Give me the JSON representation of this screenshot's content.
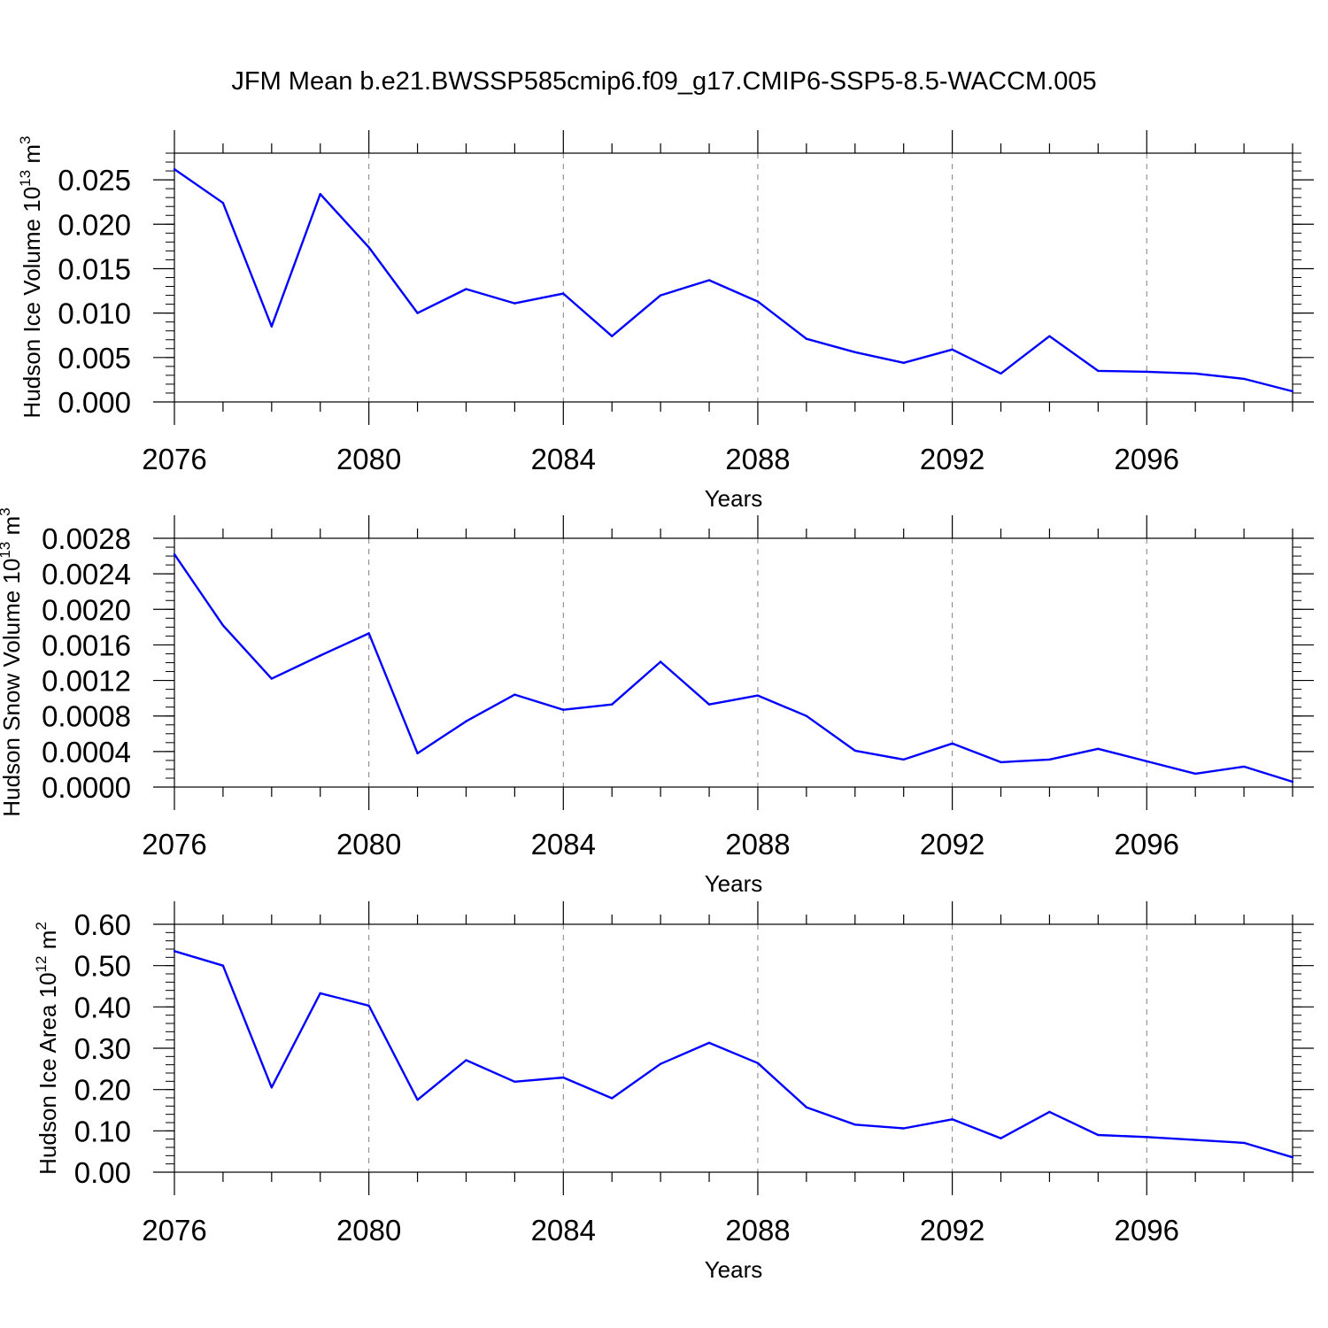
{
  "title": "JFM Mean b.e21.BWSSP585cmip6.f09_g17.CMIP6-SSP5-8.5-WACCM.005",
  "colors": {
    "line": "#0000ff",
    "axis": "#000000",
    "grid": "#808080",
    "background": "#ffffff"
  },
  "chart_data": [
    {
      "type": "line",
      "ylabel": {
        "text": "Hudson Ice Volume 10",
        "sup": "13",
        "unit": " m",
        "unit_sup": "3"
      },
      "xlabel": "Years",
      "xlim": [
        2076,
        2099
      ],
      "xticks": [
        2076,
        2080,
        2084,
        2088,
        2092,
        2096
      ],
      "xtick_labels": [
        "2076",
        "2080",
        "2084",
        "2088",
        "2092",
        "2096"
      ],
      "ylim": [
        0,
        0.028
      ],
      "yticks": [
        0,
        0.005,
        0.01,
        0.015,
        0.02,
        0.025
      ],
      "ytick_labels": [
        "0.000",
        "0.005",
        "0.010",
        "0.015",
        "0.020",
        "0.025"
      ],
      "ytick_minor_step": 0.001,
      "x": [
        2076,
        2077,
        2078,
        2079,
        2080,
        2081,
        2082,
        2083,
        2084,
        2085,
        2086,
        2087,
        2088,
        2089,
        2090,
        2091,
        2092,
        2093,
        2094,
        2095,
        2096,
        2097,
        2098,
        2099
      ],
      "values": [
        0.0262,
        0.0224,
        0.0085,
        0.0234,
        0.0174,
        0.01,
        0.0127,
        0.0111,
        0.0122,
        0.0074,
        0.012,
        0.0137,
        0.0113,
        0.0071,
        0.0056,
        0.0044,
        0.0059,
        0.0032,
        0.0074,
        0.0035,
        0.0034,
        0.0032,
        0.0026,
        0.0012
      ]
    },
    {
      "type": "line",
      "ylabel": {
        "text": "Hudson Snow Volume 10",
        "sup": "13",
        "unit": " m",
        "unit_sup": "3"
      },
      "xlabel": "Years",
      "xlim": [
        2076,
        2099
      ],
      "xticks": [
        2076,
        2080,
        2084,
        2088,
        2092,
        2096
      ],
      "xtick_labels": [
        "2076",
        "2080",
        "2084",
        "2088",
        "2092",
        "2096"
      ],
      "ylim": [
        0,
        0.0028
      ],
      "yticks": [
        0,
        0.0004,
        0.0008,
        0.0012,
        0.0016,
        0.002,
        0.0024,
        0.0028
      ],
      "ytick_labels": [
        "0.0000",
        "0.0004",
        "0.0008",
        "0.0012",
        "0.0016",
        "0.0020",
        "0.0024",
        "0.0028"
      ],
      "ytick_minor_step": 0.0001,
      "x": [
        2076,
        2077,
        2078,
        2079,
        2080,
        2081,
        2082,
        2083,
        2084,
        2085,
        2086,
        2087,
        2088,
        2089,
        2090,
        2091,
        2092,
        2093,
        2094,
        2095,
        2096,
        2097,
        2098,
        2099
      ],
      "values": [
        0.00262,
        0.00182,
        0.00122,
        0.00148,
        0.00173,
        0.00038,
        0.00074,
        0.00104,
        0.00087,
        0.00093,
        0.00141,
        0.00093,
        0.00103,
        0.0008,
        0.00041,
        0.00031,
        0.00049,
        0.00028,
        0.00031,
        0.00043,
        0.00029,
        0.00015,
        0.00023,
        6e-05
      ]
    },
    {
      "type": "line",
      "ylabel": {
        "text": "Hudson Ice Area 10",
        "sup": "12",
        "unit": " m",
        "unit_sup": "2"
      },
      "xlabel": "Years",
      "xlim": [
        2076,
        2099
      ],
      "xticks": [
        2076,
        2080,
        2084,
        2088,
        2092,
        2096
      ],
      "xtick_labels": [
        "2076",
        "2080",
        "2084",
        "2088",
        "2092",
        "2096"
      ],
      "ylim": [
        0,
        0.6
      ],
      "yticks": [
        0,
        0.1,
        0.2,
        0.3,
        0.4,
        0.5,
        0.6
      ],
      "ytick_labels": [
        "0.00",
        "0.10",
        "0.20",
        "0.30",
        "0.40",
        "0.50",
        "0.60"
      ],
      "ytick_minor_step": 0.02,
      "x": [
        2076,
        2077,
        2078,
        2079,
        2080,
        2081,
        2082,
        2083,
        2084,
        2085,
        2086,
        2087,
        2088,
        2089,
        2090,
        2091,
        2092,
        2093,
        2094,
        2095,
        2096,
        2097,
        2098,
        2099
      ],
      "values": [
        0.535,
        0.5,
        0.205,
        0.433,
        0.403,
        0.175,
        0.271,
        0.219,
        0.229,
        0.179,
        0.262,
        0.313,
        0.264,
        0.157,
        0.115,
        0.106,
        0.128,
        0.082,
        0.146,
        0.09,
        0.085,
        0.078,
        0.071,
        0.036
      ]
    }
  ]
}
